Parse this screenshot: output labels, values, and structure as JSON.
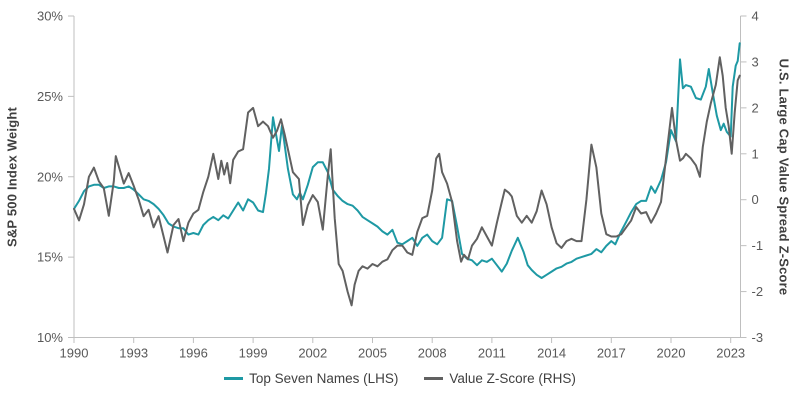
{
  "chart_data": {
    "type": "line",
    "title": "",
    "grid": false,
    "legend_position": "bottom",
    "colors": {
      "top_seven_line": "#1e99a4",
      "value_zscore_line": "#616161",
      "axis_line": "#bfbfbf",
      "tick_label": "#595959",
      "axis_title": "#3f3f3f",
      "legend_text": "#404040"
    },
    "x_axis": {
      "min": 1990,
      "max": 2023.6,
      "ticks": [
        1990,
        1993,
        1996,
        1999,
        2002,
        2005,
        2008,
        2011,
        2014,
        2017,
        2020,
        2023
      ]
    },
    "left_axis": {
      "label": "S&P 500 Index Weight",
      "min": 10,
      "max": 30,
      "tick_labels": [
        "30%",
        "25%",
        "20%",
        "15%",
        "10%"
      ],
      "tick_values": [
        30,
        25,
        20,
        15,
        10
      ]
    },
    "right_axis": {
      "label": "U.S. Large Cap Value Spread Z-Score",
      "min": -3,
      "max": 4,
      "tick_labels": [
        "4",
        "3",
        "2",
        "1",
        "0",
        "-1",
        "-2",
        "-3"
      ],
      "tick_values": [
        4,
        3,
        2,
        1,
        0,
        -1,
        -2,
        -3
      ]
    },
    "series": [
      {
        "name": "Top Seven Names (LHS)",
        "axis": "left",
        "color": "#1e99a4",
        "points": [
          [
            1990,
            18
          ],
          [
            1990.25,
            18.5
          ],
          [
            1990.5,
            19.1
          ],
          [
            1990.75,
            19.4
          ],
          [
            1991,
            19.5
          ],
          [
            1991.25,
            19.5
          ],
          [
            1991.5,
            19.3
          ],
          [
            1991.75,
            19.4
          ],
          [
            1992,
            19.4
          ],
          [
            1992.25,
            19.3
          ],
          [
            1992.5,
            19.3
          ],
          [
            1992.75,
            19.4
          ],
          [
            1993,
            19.2
          ],
          [
            1993.25,
            18.9
          ],
          [
            1993.5,
            18.6
          ],
          [
            1993.75,
            18.5
          ],
          [
            1994,
            18.3
          ],
          [
            1994.25,
            18
          ],
          [
            1994.5,
            17.6
          ],
          [
            1994.75,
            17.1
          ],
          [
            1995,
            16.9
          ],
          [
            1995.25,
            16.8
          ],
          [
            1995.5,
            16.8
          ],
          [
            1995.75,
            16.4
          ],
          [
            1996,
            16.5
          ],
          [
            1996.25,
            16.4
          ],
          [
            1996.5,
            17
          ],
          [
            1996.75,
            17.3
          ],
          [
            1997,
            17.5
          ],
          [
            1997.25,
            17.3
          ],
          [
            1997.5,
            17.6
          ],
          [
            1997.75,
            17.4
          ],
          [
            1998,
            17.9
          ],
          [
            1998.25,
            18.4
          ],
          [
            1998.5,
            17.9
          ],
          [
            1998.75,
            18.6
          ],
          [
            1999,
            18.4
          ],
          [
            1999.25,
            17.9
          ],
          [
            1999.5,
            17.8
          ],
          [
            1999.65,
            19
          ],
          [
            1999.8,
            20.5
          ],
          [
            2000,
            23.7
          ],
          [
            2000.3,
            21.6
          ],
          [
            2000.45,
            23.2
          ],
          [
            2000.75,
            20.5
          ],
          [
            2001,
            18.9
          ],
          [
            2001.2,
            18.6
          ],
          [
            2001.35,
            19
          ],
          [
            2001.5,
            18.6
          ],
          [
            2001.75,
            19.5
          ],
          [
            2002,
            20.6
          ],
          [
            2002.25,
            20.9
          ],
          [
            2002.5,
            20.9
          ],
          [
            2002.75,
            20.3
          ],
          [
            2003,
            19.2
          ],
          [
            2003.25,
            18.8
          ],
          [
            2003.5,
            18.5
          ],
          [
            2003.75,
            18.3
          ],
          [
            2004,
            18.2
          ],
          [
            2004.25,
            17.9
          ],
          [
            2004.5,
            17.5
          ],
          [
            2004.75,
            17.3
          ],
          [
            2005,
            17.1
          ],
          [
            2005.25,
            16.9
          ],
          [
            2005.5,
            16.6
          ],
          [
            2005.75,
            16.4
          ],
          [
            2006,
            16.7
          ],
          [
            2006.25,
            15.9
          ],
          [
            2006.5,
            15.8
          ],
          [
            2006.75,
            16
          ],
          [
            2007,
            16.2
          ],
          [
            2007.25,
            15.7
          ],
          [
            2007.5,
            16.2
          ],
          [
            2007.75,
            16.4
          ],
          [
            2008,
            16
          ],
          [
            2008.25,
            15.8
          ],
          [
            2008.5,
            16.2
          ],
          [
            2008.75,
            18.6
          ],
          [
            2009,
            18.5
          ],
          [
            2009.25,
            16.9
          ],
          [
            2009.5,
            15.2
          ],
          [
            2009.75,
            14.9
          ],
          [
            2010,
            14.8
          ],
          [
            2010.25,
            14.5
          ],
          [
            2010.5,
            14.8
          ],
          [
            2010.75,
            14.7
          ],
          [
            2011,
            14.9
          ],
          [
            2011.25,
            14.5
          ],
          [
            2011.5,
            14.1
          ],
          [
            2011.75,
            14.6
          ],
          [
            2012,
            15.4
          ],
          [
            2012.3,
            16.2
          ],
          [
            2012.6,
            15.3
          ],
          [
            2012.8,
            14.5
          ],
          [
            2013,
            14.2
          ],
          [
            2013.25,
            13.9
          ],
          [
            2013.5,
            13.7
          ],
          [
            2013.75,
            13.9
          ],
          [
            2014,
            14.1
          ],
          [
            2014.25,
            14.3
          ],
          [
            2014.5,
            14.4
          ],
          [
            2014.75,
            14.6
          ],
          [
            2015,
            14.7
          ],
          [
            2015.25,
            14.9
          ],
          [
            2015.5,
            15
          ],
          [
            2015.75,
            15.1
          ],
          [
            2016,
            15.2
          ],
          [
            2016.25,
            15.5
          ],
          [
            2016.5,
            15.3
          ],
          [
            2016.75,
            15.7
          ],
          [
            2017,
            16
          ],
          [
            2017.2,
            15.8
          ],
          [
            2017.45,
            16.5
          ],
          [
            2017.75,
            17.2
          ],
          [
            2018,
            17.8
          ],
          [
            2018.25,
            18.3
          ],
          [
            2018.5,
            18.5
          ],
          [
            2018.75,
            18.5
          ],
          [
            2019,
            19.4
          ],
          [
            2019.2,
            19
          ],
          [
            2019.5,
            19.8
          ],
          [
            2019.75,
            20.9
          ],
          [
            2020,
            22.9
          ],
          [
            2020.25,
            22.2
          ],
          [
            2020.45,
            27.3
          ],
          [
            2020.6,
            25.5
          ],
          [
            2020.75,
            25.7
          ],
          [
            2021,
            25.6
          ],
          [
            2021.25,
            24.9
          ],
          [
            2021.5,
            24.8
          ],
          [
            2021.75,
            25.6
          ],
          [
            2021.9,
            26.7
          ],
          [
            2022.1,
            25.2
          ],
          [
            2022.3,
            23.8
          ],
          [
            2022.5,
            22.9
          ],
          [
            2022.65,
            23.3
          ],
          [
            2022.8,
            22.8
          ],
          [
            2023,
            22.5
          ],
          [
            2023.1,
            25.6
          ],
          [
            2023.25,
            26.9
          ],
          [
            2023.35,
            27.2
          ],
          [
            2023.45,
            28.3
          ]
        ]
      },
      {
        "name": "Value Z-Score (RHS)",
        "axis": "right",
        "color": "#616161",
        "points": [
          [
            1990,
            -0.2
          ],
          [
            1990.25,
            -0.45
          ],
          [
            1990.5,
            -0.1
          ],
          [
            1990.75,
            0.5
          ],
          [
            1991,
            0.7
          ],
          [
            1991.25,
            0.4
          ],
          [
            1991.5,
            0.25
          ],
          [
            1991.75,
            -0.35
          ],
          [
            1992,
            0.4
          ],
          [
            1992.1,
            0.95
          ],
          [
            1992.3,
            0.65
          ],
          [
            1992.5,
            0.35
          ],
          [
            1992.75,
            0.58
          ],
          [
            1993,
            0.3
          ],
          [
            1993.25,
            0
          ],
          [
            1993.5,
            -0.36
          ],
          [
            1993.75,
            -0.22
          ],
          [
            1994,
            -0.6
          ],
          [
            1994.25,
            -0.36
          ],
          [
            1994.5,
            -0.8
          ],
          [
            1994.7,
            -1.15
          ],
          [
            1995,
            -0.55
          ],
          [
            1995.25,
            -0.42
          ],
          [
            1995.5,
            -0.9
          ],
          [
            1995.75,
            -0.5
          ],
          [
            1996,
            -0.3
          ],
          [
            1996.25,
            -0.22
          ],
          [
            1996.5,
            0.17
          ],
          [
            1996.75,
            0.5
          ],
          [
            1997,
            1
          ],
          [
            1997.25,
            0.45
          ],
          [
            1997.4,
            0.85
          ],
          [
            1997.55,
            0.55
          ],
          [
            1997.7,
            0.8
          ],
          [
            1997.85,
            0.36
          ],
          [
            1998,
            0.87
          ],
          [
            1998.25,
            1.05
          ],
          [
            1998.5,
            1.1
          ],
          [
            1998.75,
            1.9
          ],
          [
            1999,
            2
          ],
          [
            1999.25,
            1.6
          ],
          [
            1999.5,
            1.7
          ],
          [
            1999.75,
            1.6
          ],
          [
            2000,
            1.35
          ],
          [
            2000.2,
            1.5
          ],
          [
            2000.4,
            1.75
          ],
          [
            2000.6,
            1.4
          ],
          [
            2000.8,
            1
          ],
          [
            2001,
            0.6
          ],
          [
            2001.3,
            0.45
          ],
          [
            2001.5,
            -0.55
          ],
          [
            2001.75,
            -0.12
          ],
          [
            2002,
            0.1
          ],
          [
            2002.25,
            -0.05
          ],
          [
            2002.5,
            -0.65
          ],
          [
            2002.75,
            0.5
          ],
          [
            2002.9,
            1.1
          ],
          [
            2003.1,
            -0.4
          ],
          [
            2003.3,
            -1.4
          ],
          [
            2003.5,
            -1.55
          ],
          [
            2003.75,
            -2
          ],
          [
            2003.95,
            -2.3
          ],
          [
            2004.1,
            -1.85
          ],
          [
            2004.3,
            -1.55
          ],
          [
            2004.5,
            -1.45
          ],
          [
            2004.75,
            -1.5
          ],
          [
            2005,
            -1.4
          ],
          [
            2005.25,
            -1.45
          ],
          [
            2005.5,
            -1.35
          ],
          [
            2005.75,
            -1.3
          ],
          [
            2006,
            -1.1
          ],
          [
            2006.25,
            -1
          ],
          [
            2006.5,
            -1
          ],
          [
            2006.75,
            -1.15
          ],
          [
            2007,
            -1.2
          ],
          [
            2007.25,
            -0.7
          ],
          [
            2007.5,
            -0.4
          ],
          [
            2007.75,
            -0.35
          ],
          [
            2008,
            0.2
          ],
          [
            2008.2,
            0.9
          ],
          [
            2008.35,
            1
          ],
          [
            2008.5,
            0.6
          ],
          [
            2008.75,
            0.35
          ],
          [
            2009,
            -0.05
          ],
          [
            2009.25,
            -0.9
          ],
          [
            2009.45,
            -1.35
          ],
          [
            2009.6,
            -1.2
          ],
          [
            2009.8,
            -1.3
          ],
          [
            2010,
            -1
          ],
          [
            2010.25,
            -0.85
          ],
          [
            2010.5,
            -0.6
          ],
          [
            2010.75,
            -0.8
          ],
          [
            2011,
            -1
          ],
          [
            2011.25,
            -0.5
          ],
          [
            2011.5,
            -0.05
          ],
          [
            2011.65,
            0.22
          ],
          [
            2011.85,
            0.15
          ],
          [
            2012,
            0.07
          ],
          [
            2012.25,
            -0.35
          ],
          [
            2012.5,
            -0.5
          ],
          [
            2012.75,
            -0.35
          ],
          [
            2013,
            -0.5
          ],
          [
            2013.25,
            -0.25
          ],
          [
            2013.5,
            0.2
          ],
          [
            2013.75,
            -0.1
          ],
          [
            2014,
            -0.6
          ],
          [
            2014.25,
            -0.95
          ],
          [
            2014.5,
            -1.05
          ],
          [
            2014.75,
            -0.9
          ],
          [
            2015,
            -0.85
          ],
          [
            2015.25,
            -0.9
          ],
          [
            2015.5,
            -0.9
          ],
          [
            2015.75,
            0
          ],
          [
            2016,
            1.2
          ],
          [
            2016.25,
            0.7
          ],
          [
            2016.5,
            -0.3
          ],
          [
            2016.75,
            -0.75
          ],
          [
            2017,
            -0.8
          ],
          [
            2017.25,
            -0.8
          ],
          [
            2017.5,
            -0.75
          ],
          [
            2017.75,
            -0.6
          ],
          [
            2018,
            -0.45
          ],
          [
            2018.25,
            -0.16
          ],
          [
            2018.5,
            -0.3
          ],
          [
            2018.75,
            -0.27
          ],
          [
            2019,
            -0.5
          ],
          [
            2019.25,
            -0.3
          ],
          [
            2019.5,
            -0.05
          ],
          [
            2019.75,
            0.9
          ],
          [
            2020.05,
            2
          ],
          [
            2020.25,
            1.3
          ],
          [
            2020.45,
            0.85
          ],
          [
            2020.6,
            0.9
          ],
          [
            2020.75,
            1
          ],
          [
            2021,
            0.9
          ],
          [
            2021.25,
            0.75
          ],
          [
            2021.45,
            0.5
          ],
          [
            2021.6,
            1.15
          ],
          [
            2021.8,
            1.7
          ],
          [
            2022,
            2.1
          ],
          [
            2022.25,
            2.5
          ],
          [
            2022.45,
            3.1
          ],
          [
            2022.6,
            2.7
          ],
          [
            2022.75,
            2
          ],
          [
            2022.9,
            1.6
          ],
          [
            2023.05,
            1
          ],
          [
            2023.2,
            1.9
          ],
          [
            2023.35,
            2.6
          ],
          [
            2023.45,
            2.7
          ]
        ]
      }
    ]
  }
}
